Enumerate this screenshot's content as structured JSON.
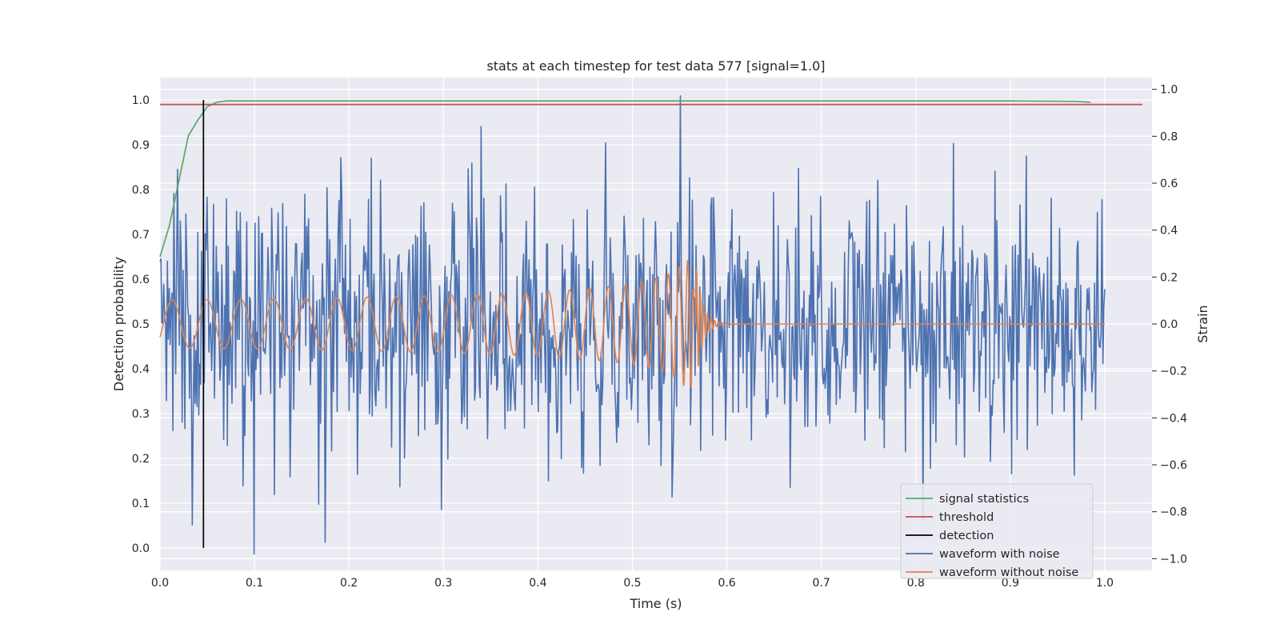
{
  "chart_data": {
    "type": "line",
    "title": "stats at each timestep for test data 577 [signal=1.0]",
    "xlabel": "Time (s)",
    "ylabel_left": "Detection probability",
    "ylabel_right": "Strain",
    "xlim": [
      0.0,
      1.05
    ],
    "ylim_left": [
      -0.05,
      1.05
    ],
    "ylim_right": [
      -1.05,
      1.05
    ],
    "x_ticks": [
      "0.0",
      "0.1",
      "0.2",
      "0.3",
      "0.4",
      "0.5",
      "0.6",
      "0.7",
      "0.8",
      "0.9",
      "1.0"
    ],
    "y_ticks_left": [
      "0.0",
      "0.1",
      "0.2",
      "0.3",
      "0.4",
      "0.5",
      "0.6",
      "0.7",
      "0.8",
      "0.9",
      "1.0"
    ],
    "y_ticks_right": [
      "−1.0",
      "−0.8",
      "−0.6",
      "−0.4",
      "−0.2",
      "0.0",
      "0.2",
      "0.4",
      "0.6",
      "0.8",
      "1.0"
    ],
    "grid": true,
    "legend_position": "lower-right",
    "series": [
      {
        "name": "signal statistics",
        "color": "#55a868",
        "axis": "left",
        "x": [
          0.0,
          0.01,
          0.02,
          0.03,
          0.04,
          0.05,
          0.06,
          0.07,
          0.1,
          0.3,
          0.5,
          0.7,
          0.9,
          0.97,
          0.985
        ],
        "y": [
          0.65,
          0.72,
          0.82,
          0.92,
          0.955,
          0.985,
          0.995,
          0.998,
          0.998,
          0.998,
          0.998,
          0.998,
          0.998,
          0.997,
          0.995
        ]
      },
      {
        "name": "threshold",
        "color": "#c44e52",
        "axis": "left",
        "x": [
          0.0,
          1.04
        ],
        "y": [
          0.99,
          0.99
        ]
      },
      {
        "name": "detection",
        "color": "#000000",
        "axis": "left",
        "x": [
          0.046,
          0.046
        ],
        "y": [
          0.0,
          1.0
        ]
      },
      {
        "name": "waveform with noise",
        "color": "#4c72b0",
        "axis": "right",
        "x_range": [
          0.0,
          1.0
        ],
        "sample_rate": 1024,
        "amplitude_range": [
          -1.0,
          1.0
        ]
      },
      {
        "name": "waveform without noise",
        "color": "#dd8452",
        "axis": "right",
        "x_range": [
          0.0,
          1.0
        ],
        "merger_time": 0.567,
        "peak_amplitude": 0.27,
        "early_amplitude": 0.1
      }
    ]
  }
}
